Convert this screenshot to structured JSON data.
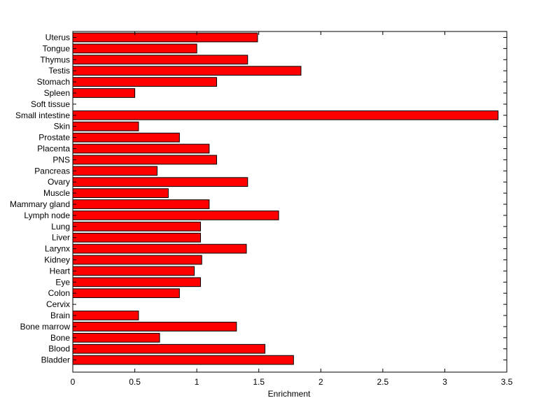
{
  "chart_data": {
    "type": "bar",
    "orientation": "horizontal",
    "xlabel": "Enrichment",
    "ylabel": "",
    "title": "",
    "xlim": [
      0,
      3.5
    ],
    "xticks": [
      "0",
      "0.5",
      "1",
      "1.5",
      "2",
      "2.5",
      "3",
      "3.5"
    ],
    "grid": false,
    "bar_color": "#ff0000",
    "categories": [
      "Uterus",
      "Tongue",
      "Thymus",
      "Testis",
      "Stomach",
      "Spleen",
      "Soft tissue",
      "Small intestine",
      "Skin",
      "Prostate",
      "Placenta",
      "PNS",
      "Pancreas",
      "Ovary",
      "Muscle",
      "Mammary gland",
      "Lymph node",
      "Lung",
      "Liver",
      "Larynx",
      "Kidney",
      "Heart",
      "Eye",
      "Colon",
      "Cervix",
      "Brain",
      "Bone marrow",
      "Bone",
      "Blood",
      "Bladder"
    ],
    "values": [
      1.49,
      1.0,
      1.41,
      1.84,
      1.16,
      0.5,
      0,
      3.43,
      0.53,
      0.86,
      1.1,
      1.16,
      0.68,
      1.41,
      0.77,
      1.1,
      1.66,
      1.03,
      1.03,
      1.4,
      1.04,
      0.98,
      1.03,
      0.86,
      0,
      0.53,
      1.32,
      0.7,
      1.55,
      1.78
    ]
  }
}
